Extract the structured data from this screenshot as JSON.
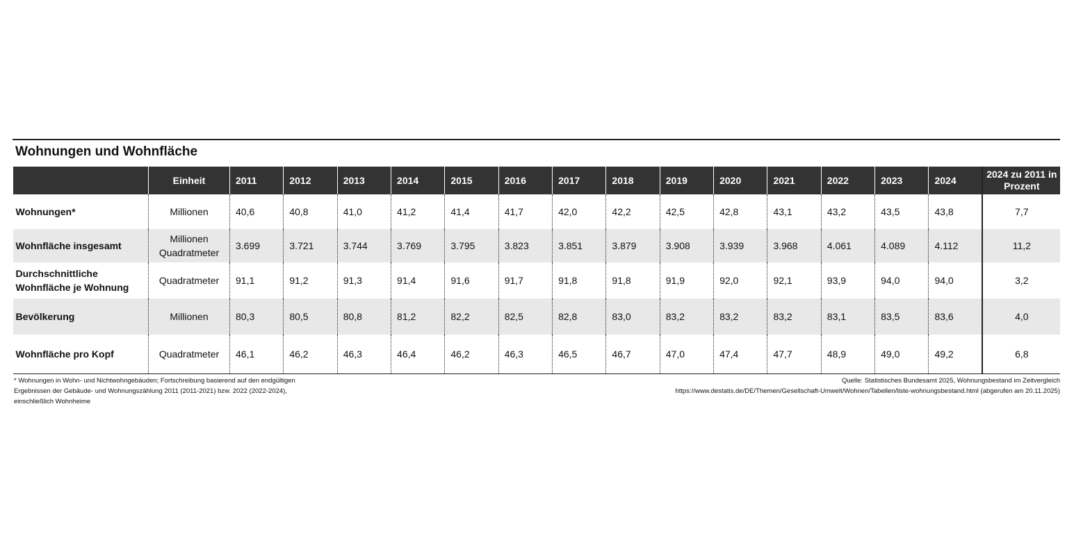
{
  "title": "Wohnungen und Wohnfläche",
  "table": {
    "header": [
      "Einheit",
      "2011",
      "2012",
      "2013",
      "2014",
      "2015",
      "2016",
      "2017",
      "2018",
      "2019",
      "2020",
      "2021",
      "2022",
      "2023",
      "2024",
      "2024 zu 2011 in Prozent"
    ],
    "rows": [
      {
        "label": "Wohnungen*",
        "unit": "Millionen",
        "values": [
          "40,6",
          "40,8",
          "41,0",
          "41,2",
          "41,4",
          "41,7",
          "42,0",
          "42,2",
          "42,5",
          "42,8",
          "43,1",
          "43,2",
          "43,5",
          "43,8"
        ],
        "change": "7,7"
      },
      {
        "label": "Wohnfläche insgesamt",
        "unit": "Millionen Quadratmeter",
        "values": [
          "3.699",
          "3.721",
          "3.744",
          "3.769",
          "3.795",
          "3.823",
          "3.851",
          "3.879",
          "3.908",
          "3.939",
          "3.968",
          "4.061",
          "4.089",
          "4.112"
        ],
        "change": "11,2"
      },
      {
        "label": "Durchschnittliche Wohnfläche je Wohnung",
        "unit": "Quadratmeter",
        "values": [
          "91,1",
          "91,2",
          "91,3",
          "91,4",
          "91,6",
          "91,7",
          "91,8",
          "91,8",
          "91,9",
          "92,0",
          "92,1",
          "93,9",
          "94,0",
          "94,0"
        ],
        "change": "3,2"
      },
      {
        "label": "Bevölkerung",
        "unit": "Millionen",
        "values": [
          "80,3",
          "80,5",
          "80,8",
          "81,2",
          "82,2",
          "82,5",
          "82,8",
          "83,0",
          "83,2",
          "83,2",
          "83,2",
          "83,1",
          "83,5",
          "83,6"
        ],
        "change": "4,0"
      },
      {
        "label": "Wohnfläche pro Kopf",
        "unit": "Quadratmeter",
        "values": [
          "46,1",
          "46,2",
          "46,3",
          "46,4",
          "46,2",
          "46,3",
          "46,5",
          "46,7",
          "47,0",
          "47,4",
          "47,7",
          "48,9",
          "49,0",
          "49,2"
        ],
        "change": "6,8"
      }
    ]
  },
  "footnote": "* Wohnungen in Wohn- und Nichtwohngebäuden; Fortschreibung basierend auf den endgültigen Ergebnissen der Gebäude- und Wohnungszählung 2011 (2011-2021) bzw. 2022 (2022-2024), einschließlich Wohnheime",
  "source": [
    "Quelle: Statistisches Bundesamt 2025, Wohnungsbestand im Zeitvergleich",
    "https://www.destatis.de/DE/Themen/Gesellschaft-Umwelt/Wohnen/Tabellen/liste-wohnungsbestand.html (abgerufen am 20.11.2025)"
  ]
}
